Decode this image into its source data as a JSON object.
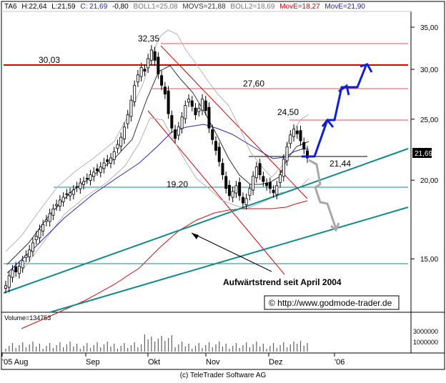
{
  "header": {
    "symbol": "TA6",
    "high": "H:22,64",
    "low": "L:21,59",
    "close": "C: 21,69",
    "change": "-0,80",
    "boll1": "BOLL1=25,08",
    "movs": "MOVS=21,88",
    "boll2": "BOLL2=18,69",
    "move_red": "MovE=18,27",
    "move_blue": "MovE=21,90"
  },
  "colors": {
    "blue_text": "#2020c8",
    "red_text": "#e00000",
    "price_line": "#000000",
    "boll_band": "#b4b4b4",
    "moving_avg_short": "#303030",
    "ema_blue": "#2828b4",
    "ema_red": "#d01010",
    "trendline": "#108a8a",
    "resistance": "#e00000",
    "projection_up": "#1020d0",
    "projection_down": "#a8a8a8",
    "volume": "#606060"
  },
  "annotations": {
    "peak_label": "32,35",
    "resistance_label": "30,03",
    "level_27": "27,60",
    "level_24": "24,50",
    "level_19": "19,20",
    "level_21": "21,44",
    "trend_caption": "Aufwärtstrend seit April 2004",
    "copyright_url": "© http://www.godmode-trader.de",
    "footer": "(c) TeleTrader Software AG",
    "current_price": "21,69",
    "volume_label": "Volume=134753"
  },
  "chart_data": {
    "type": "candlestick",
    "y_axis_scale": "log",
    "ylim": [
      12.5,
      36.5
    ],
    "y_ticks": [
      {
        "value": 35,
        "label": "35,00"
      },
      {
        "value": 30,
        "label": "30,00"
      },
      {
        "value": 25,
        "label": "25,00"
      },
      {
        "value": 20,
        "label": "20,00"
      },
      {
        "value": 15,
        "label": "15,00"
      }
    ],
    "x_ticks": [
      "'05 Aug",
      "Sep",
      "Okt",
      "Nov",
      "Dez",
      "'06"
    ],
    "volume_ticks": [
      "3000000",
      "1000000"
    ],
    "closes": [
      13.6,
      14.1,
      14.4,
      14.3,
      14.6,
      14.9,
      15.2,
      15.5,
      15.9,
      16.3,
      16.7,
      17.0,
      17.3,
      17.7,
      18.0,
      18.3,
      18.6,
      18.8,
      19.0,
      19.1,
      19.3,
      19.5,
      19.8,
      19.9,
      20.1,
      20.4,
      20.6,
      20.7,
      21.0,
      21.3,
      21.4,
      21.7,
      22.2,
      22.8,
      23.4,
      24.3,
      25.4,
      26.8,
      28.3,
      29.4,
      30.2,
      29.8,
      31.2,
      32.2,
      31.0,
      29.5,
      28.3,
      27.4,
      25.5,
      24.2,
      23.3,
      24.3,
      25.2,
      26.3,
      26.9,
      26.2,
      25.4,
      26.0,
      26.9,
      25.8,
      24.2,
      23.2,
      22.3,
      21.4,
      20.4,
      19.4,
      18.9,
      19.2,
      19.6,
      18.9,
      18.4,
      18.7,
      19.4,
      20.3,
      21.0,
      20.4,
      19.9,
      19.6,
      19.4,
      19.1,
      19.6,
      20.4,
      21.6,
      22.6,
      23.6,
      24.1,
      23.7,
      23.1,
      22.4,
      21.7
    ]
  }
}
